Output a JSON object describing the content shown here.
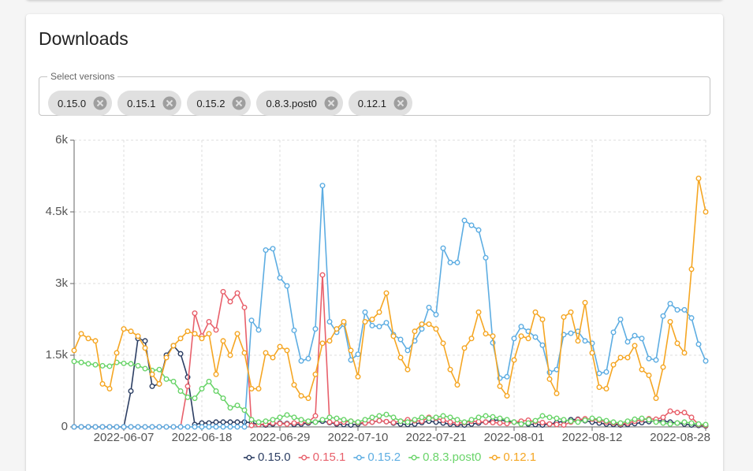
{
  "card": {
    "title": "Downloads"
  },
  "filter": {
    "label": "Select versions",
    "chips": [
      "0.15.0",
      "0.15.1",
      "0.15.2",
      "0.8.3.post0",
      "0.12.1"
    ]
  },
  "chart_data": {
    "type": "line",
    "x": [
      "2022-05-31",
      "2022-06-01",
      "2022-06-02",
      "2022-06-03",
      "2022-06-04",
      "2022-06-05",
      "2022-06-06",
      "2022-06-07",
      "2022-06-08",
      "2022-06-09",
      "2022-06-10",
      "2022-06-11",
      "2022-06-12",
      "2022-06-13",
      "2022-06-14",
      "2022-06-15",
      "2022-06-16",
      "2022-06-17",
      "2022-06-18",
      "2022-06-19",
      "2022-06-20",
      "2022-06-21",
      "2022-06-22",
      "2022-06-23",
      "2022-06-24",
      "2022-06-25",
      "2022-06-26",
      "2022-06-27",
      "2022-06-28",
      "2022-06-29",
      "2022-06-30",
      "2022-07-01",
      "2022-07-02",
      "2022-07-03",
      "2022-07-04",
      "2022-07-05",
      "2022-07-06",
      "2022-07-07",
      "2022-07-08",
      "2022-07-09",
      "2022-07-10",
      "2022-07-11",
      "2022-07-12",
      "2022-07-13",
      "2022-07-14",
      "2022-07-15",
      "2022-07-16",
      "2022-07-17",
      "2022-07-18",
      "2022-07-19",
      "2022-07-20",
      "2022-07-21",
      "2022-07-22",
      "2022-07-23",
      "2022-07-24",
      "2022-07-25",
      "2022-07-26",
      "2022-07-27",
      "2022-07-28",
      "2022-07-29",
      "2022-07-30",
      "2022-07-31",
      "2022-08-01",
      "2022-08-02",
      "2022-08-03",
      "2022-08-04",
      "2022-08-05",
      "2022-08-06",
      "2022-08-07",
      "2022-08-08",
      "2022-08-09",
      "2022-08-10",
      "2022-08-11",
      "2022-08-12",
      "2022-08-13",
      "2022-08-14",
      "2022-08-15",
      "2022-08-16",
      "2022-08-17",
      "2022-08-18",
      "2022-08-19",
      "2022-08-20",
      "2022-08-21",
      "2022-08-22",
      "2022-08-23",
      "2022-08-24",
      "2022-08-25",
      "2022-08-26",
      "2022-08-27",
      "2022-08-28"
    ],
    "xlim": [
      "2022-05-31",
      "2022-08-28"
    ],
    "xticks": [
      "2022-06-07",
      "2022-06-18",
      "2022-06-29",
      "2022-07-10",
      "2022-07-21",
      "2022-08-01",
      "2022-08-12",
      "2022-08-28"
    ],
    "ylim": [
      0,
      6000
    ],
    "yticks": [
      0,
      {
        "value": 1500,
        "label": "1.5k"
      },
      {
        "value": 3000,
        "label": "3k"
      },
      {
        "value": 4500,
        "label": "4.5k"
      },
      {
        "value": 6000,
        "label": "6k"
      }
    ],
    "grid": true,
    "legend": "bottom",
    "series": [
      {
        "name": "0.15.0",
        "color": "#2c3e63",
        "values": [
          0,
          0,
          0,
          0,
          0,
          0,
          0,
          0,
          750,
          1850,
          1800,
          850,
          900,
          1500,
          1700,
          1530,
          1040,
          50,
          80,
          80,
          100,
          100,
          100,
          100,
          100,
          90,
          50,
          40,
          60,
          80,
          70,
          50,
          60,
          80,
          100,
          120,
          90,
          60,
          50,
          40,
          60,
          80,
          100,
          130,
          110,
          80,
          60,
          50,
          60,
          90,
          120,
          100,
          80,
          60,
          50,
          40,
          60,
          80,
          100,
          130,
          150,
          120,
          100,
          80,
          60,
          50,
          40,
          60,
          90,
          120,
          150,
          160,
          130,
          100,
          80,
          60,
          50,
          40,
          50,
          70,
          90,
          110,
          130,
          120,
          100,
          80,
          60,
          40,
          30,
          20
        ]
      },
      {
        "name": "0.15.1",
        "color": "#e8606b",
        "values": [
          0,
          0,
          0,
          0,
          0,
          0,
          0,
          0,
          0,
          0,
          0,
          0,
          0,
          0,
          0,
          0,
          850,
          2380,
          1900,
          2200,
          2030,
          2830,
          2620,
          2800,
          2500,
          30,
          50,
          60,
          80,
          70,
          60,
          80,
          90,
          100,
          230,
          3180,
          100,
          80,
          100,
          120,
          90,
          80,
          100,
          130,
          110,
          90,
          120,
          150,
          130,
          120,
          200,
          180,
          140,
          100,
          80,
          90,
          120,
          110,
          100,
          90,
          80,
          70,
          100,
          120,
          140,
          110,
          90,
          60,
          50,
          40,
          100,
          150,
          170,
          160,
          140,
          100,
          80,
          60,
          80,
          120,
          150,
          170,
          160,
          200,
          330,
          300,
          300,
          200,
          50,
          30
        ]
      },
      {
        "name": "0.15.2",
        "color": "#5dade2",
        "values": [
          0,
          0,
          0,
          0,
          0,
          0,
          0,
          0,
          0,
          0,
          0,
          0,
          0,
          0,
          0,
          0,
          0,
          0,
          0,
          0,
          0,
          0,
          0,
          0,
          0,
          2230,
          2030,
          3700,
          3730,
          3120,
          2950,
          2020,
          1380,
          1430,
          2050,
          5050,
          2200,
          1980,
          2150,
          1400,
          1520,
          2400,
          2120,
          2100,
          2180,
          1930,
          1830,
          1600,
          1800,
          2050,
          2500,
          2350,
          3740,
          3440,
          3440,
          4320,
          4220,
          4120,
          3540,
          1760,
          1020,
          1050,
          1850,
          2100,
          2000,
          1880,
          1710,
          1140,
          1200,
          1930,
          1960,
          2000,
          1800,
          1750,
          1120,
          1150,
          1980,
          2250,
          1780,
          1910,
          1850,
          1430,
          1400,
          2320,
          2580,
          2450,
          2450,
          2280,
          1730,
          1380
        ]
      },
      {
        "name": "0.8.3.post0",
        "color": "#6ad46a",
        "values": [
          1370,
          1350,
          1320,
          1300,
          1280,
          1270,
          1350,
          1330,
          1320,
          1280,
          1220,
          1180,
          1200,
          1000,
          950,
          750,
          620,
          600,
          800,
          950,
          750,
          600,
          400,
          450,
          350,
          150,
          100,
          120,
          150,
          200,
          250,
          200,
          150,
          120,
          100,
          150,
          200,
          180,
          150,
          120,
          100,
          150,
          200,
          230,
          260,
          200,
          120,
          100,
          150,
          200,
          180,
          200,
          230,
          200,
          150,
          100,
          150,
          200,
          230,
          210,
          180,
          150,
          100,
          60,
          80,
          130,
          230,
          200,
          180,
          150,
          120,
          100,
          140,
          180,
          160,
          130,
          100,
          80,
          120,
          160,
          180,
          150,
          100,
          80,
          60,
          80,
          100,
          80,
          60,
          50
        ]
      },
      {
        "name": "0.12.1",
        "color": "#f5a623",
        "values": [
          1600,
          1950,
          1850,
          1800,
          900,
          800,
          1550,
          2050,
          2000,
          1900,
          1650,
          1100,
          900,
          1450,
          1700,
          1850,
          2000,
          1950,
          1850,
          1950,
          1100,
          1800,
          1500,
          1950,
          1550,
          800,
          800,
          1550,
          1450,
          1680,
          1600,
          880,
          650,
          600,
          1100,
          1750,
          1800,
          2050,
          2200,
          1600,
          1050,
          2200,
          2250,
          2400,
          2800,
          1900,
          1450,
          1200,
          2000,
          2150,
          2150,
          2050,
          1750,
          1200,
          880,
          1650,
          1850,
          2400,
          1950,
          1900,
          850,
          650,
          1400,
          1900,
          1850,
          2400,
          2250,
          1000,
          700,
          2300,
          2400,
          1800,
          2600,
          1550,
          830,
          800,
          1300,
          1450,
          1450,
          1700,
          1200,
          1080,
          600,
          1250,
          2200,
          1750,
          1550,
          3300,
          5200,
          4500
        ]
      }
    ]
  }
}
